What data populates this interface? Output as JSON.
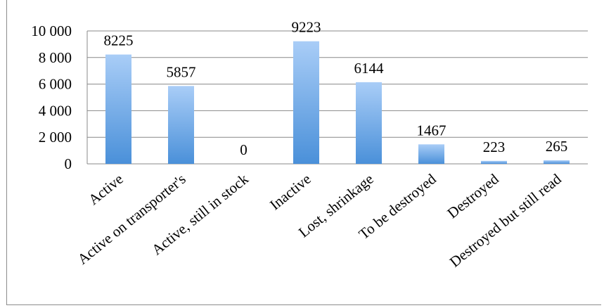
{
  "chart_data": {
    "type": "bar",
    "categories": [
      "Active",
      "Active on transporter's",
      "Active, still in stock",
      "Inactive",
      "Lost, shrinkage",
      "To be destroyed",
      "Destroyed",
      "Destroyed but still read"
    ],
    "values": [
      8225,
      5857,
      0,
      9223,
      6144,
      1467,
      223,
      265
    ],
    "data_labels": [
      "8225",
      "5857",
      "0",
      "9223",
      "6144",
      "1467",
      "223",
      "265"
    ],
    "y_tick_labels": [
      "0",
      "2 000",
      "4 000",
      "6 000",
      "8 000",
      "10 000"
    ],
    "y_ticks": [
      0,
      2000,
      4000,
      6000,
      8000,
      10000
    ],
    "ylim": [
      0,
      10000
    ],
    "grid": true,
    "legend": "none",
    "colors": {
      "bar_top": "#a9cdf7",
      "bar_bottom": "#4a90d9",
      "grid": "#888888",
      "frame": "#8c8c8c"
    }
  }
}
